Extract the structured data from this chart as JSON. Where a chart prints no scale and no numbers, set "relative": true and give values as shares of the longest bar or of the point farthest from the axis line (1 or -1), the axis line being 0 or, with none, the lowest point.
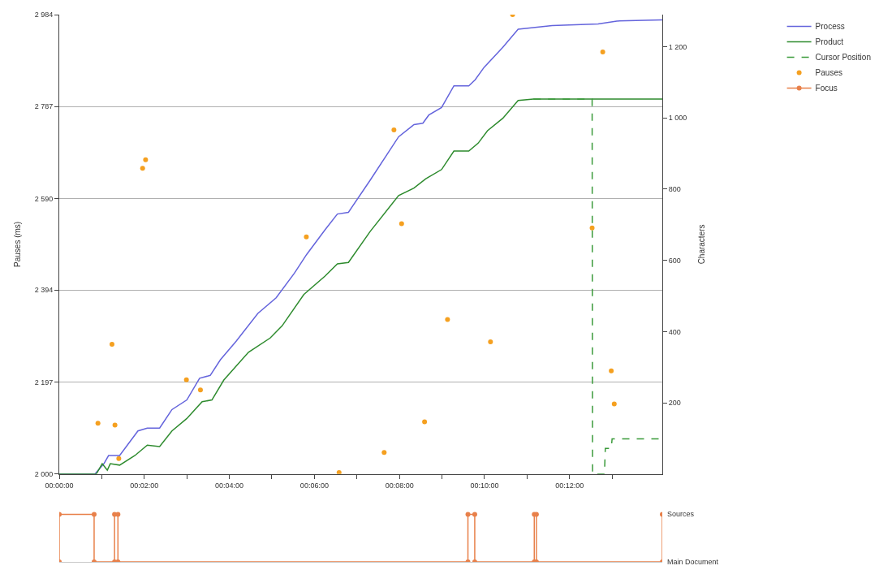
{
  "chart_data": [
    {
      "type": "line",
      "ylabel": "Pauses (ms)",
      "y2label": "Characters",
      "xlim": [
        0,
        14.18
      ],
      "xticks": [
        {
          "value": 0,
          "label": "00:00:00"
        },
        {
          "value": 1,
          "label": null
        },
        {
          "value": 2,
          "label": "00:02:00"
        },
        {
          "value": 3,
          "label": null
        },
        {
          "value": 4,
          "label": "00:04:00"
        },
        {
          "value": 5,
          "label": null
        },
        {
          "value": 6,
          "label": "00:06:00"
        },
        {
          "value": 7,
          "label": null
        },
        {
          "value": 8,
          "label": "00:08:00"
        },
        {
          "value": 9,
          "label": null
        },
        {
          "value": 10,
          "label": "00:10:00"
        },
        {
          "value": 11,
          "label": null
        },
        {
          "value": 12,
          "label": "00:12:00"
        },
        {
          "value": 13,
          "label": null
        }
      ],
      "ylim": [
        2000,
        2984
      ],
      "yticks": [
        {
          "value": 2000,
          "label": "2 000"
        },
        {
          "value": 2197,
          "label": "2 197"
        },
        {
          "value": 2394,
          "label": "2 394"
        },
        {
          "value": 2590,
          "label": "2 590"
        },
        {
          "value": 2787,
          "label": "2 787"
        },
        {
          "value": 2984,
          "label": "2 984"
        }
      ],
      "y2lim": [
        0,
        1290
      ],
      "y2ticks": [
        200,
        400,
        600,
        800,
        {
          "value": 1000,
          "label": "1 000"
        },
        {
          "value": 1200,
          "label": "1 200"
        }
      ],
      "grid": "y",
      "legend": "top right",
      "series": [
        {
          "name": "Process",
          "type": "line",
          "axis": "y2",
          "color": "#6464dc",
          "line_style": "solid",
          "x": [
            0,
            0.84,
            1.05,
            1.16,
            1.42,
            1.85,
            2.07,
            2.36,
            2.65,
            3.0,
            3.3,
            3.55,
            3.79,
            4.16,
            4.67,
            5.1,
            5.53,
            5.82,
            6.25,
            6.54,
            6.8,
            7.31,
            7.98,
            8.34,
            8.55,
            8.69,
            8.99,
            9.28,
            9.63,
            9.78,
            9.99,
            10.43,
            10.79,
            11.59,
            12.67,
            13.11,
            14.18
          ],
          "values": [
            0,
            0,
            29,
            52,
            52,
            121,
            129,
            129,
            181,
            208,
            269,
            277,
            321,
            373,
            451,
            495,
            564,
            617,
            686,
            730,
            735,
            825,
            947,
            981,
            985,
            1008,
            1029,
            1090,
            1090,
            1107,
            1142,
            1198,
            1249,
            1259,
            1264,
            1272,
            1275
          ]
        },
        {
          "name": "Product",
          "type": "line",
          "axis": "y2",
          "color": "#2e8b2e",
          "line_style": "solid",
          "x": [
            0,
            0.87,
            1.01,
            1.13,
            1.2,
            1.42,
            1.78,
            2.07,
            2.36,
            2.65,
            3.0,
            3.36,
            3.59,
            3.87,
            4.45,
            4.96,
            5.24,
            5.75,
            6.25,
            6.54,
            6.8,
            7.31,
            7.98,
            8.34,
            8.62,
            8.99,
            9.28,
            9.63,
            9.85,
            10.07,
            10.43,
            10.79,
            11.15,
            14.18
          ],
          "values": [
            0,
            0,
            29,
            11,
            29,
            25,
            52,
            81,
            77,
            121,
            156,
            203,
            208,
            264,
            342,
            382,
            416,
            504,
            556,
            590,
            594,
            681,
            782,
            803,
            829,
            855,
            907,
            907,
            929,
            964,
            999,
            1049,
            1053,
            1053
          ]
        },
        {
          "name": "Cursor Position",
          "type": "line",
          "axis": "y2",
          "color": "#3a9a3a",
          "line_style": "dashed",
          "x": [
            11.15,
            12.53,
            12.54,
            12.82,
            12.84,
            12.98,
            13.0,
            14.18
          ],
          "values": [
            1053,
            1053,
            0,
            0,
            72,
            72,
            99,
            99
          ]
        },
        {
          "name": "Pauses",
          "type": "scatter",
          "axis": "y",
          "color": "#f5a020",
          "marker": "circle",
          "x": [
            0.91,
            1.24,
            1.31,
            1.4,
            1.96,
            2.03,
            2.99,
            3.32,
            5.81,
            6.58,
            7.64,
            7.87,
            8.05,
            8.59,
            9.13,
            10.14,
            10.66,
            12.53,
            12.78,
            12.98,
            13.05
          ],
          "values": [
            2109,
            2278,
            2105,
            2033,
            2655,
            2673,
            2202,
            2180,
            2508,
            2003,
            2046,
            2737,
            2536,
            2112,
            2331,
            2283,
            2984,
            2527,
            2904,
            2221,
            2150
          ]
        }
      ]
    },
    {
      "type": "line",
      "xlim": [
        0,
        14.18
      ],
      "relative": true,
      "marker": "circle",
      "annotations": [
        "Sources",
        "Main Document"
      ],
      "series": [
        {
          "name": "Focus",
          "color": "#e8804a",
          "x": [
            0,
            0,
            0.82,
            0.82,
            1.3,
            1.3,
            1.38,
            1.38,
            9.61,
            9.61,
            9.77,
            9.77,
            11.17,
            11.17,
            11.22,
            11.22,
            14.18,
            14.18
          ],
          "values": [
            0,
            1,
            1,
            0,
            0,
            1,
            1,
            0,
            0,
            1,
            1,
            0,
            0,
            1,
            1,
            0,
            0,
            1
          ]
        }
      ]
    }
  ]
}
